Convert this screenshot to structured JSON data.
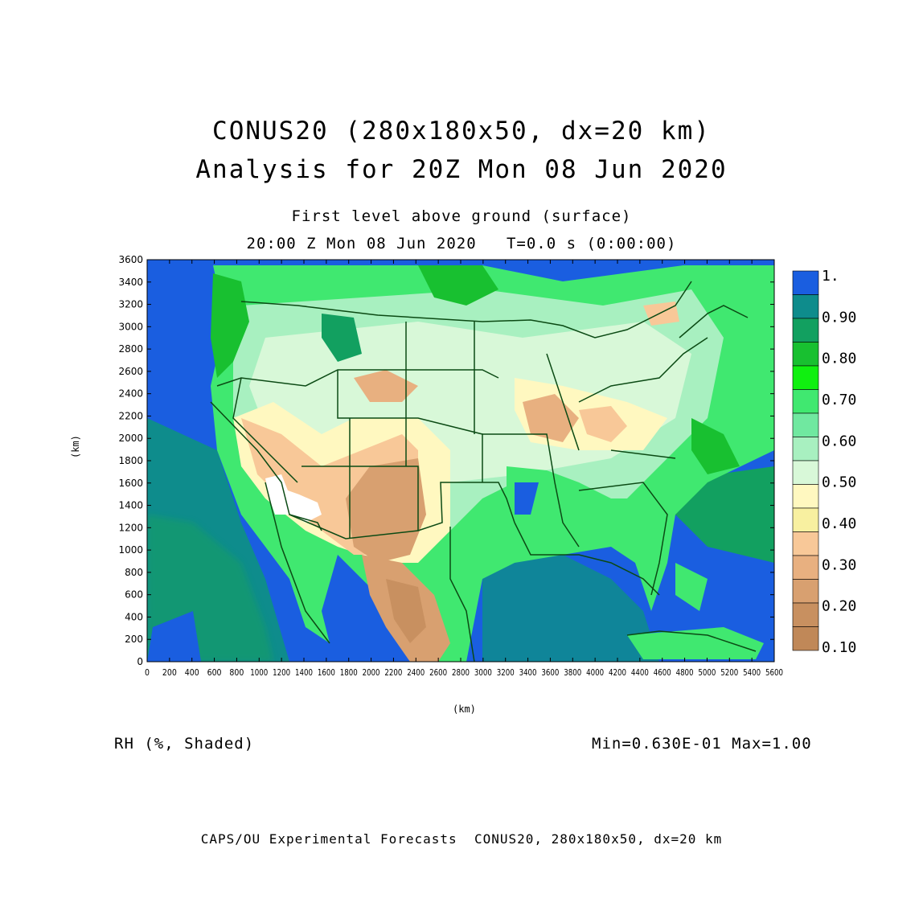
{
  "titles": {
    "line1": "CONUS20 (280x180x50, dx=20 km)",
    "line2": "Analysis for 20Z Mon 08 Jun 2020",
    "sub1": "First level above ground (surface)",
    "sub2": "20:00 Z Mon 08 Jun 2020   T=0.0 s (0:00:00)"
  },
  "axes": {
    "x_label": "(km)",
    "y_label": "(km)",
    "x_ticks": [
      "0",
      "200",
      "400",
      "600",
      "800",
      "1000",
      "1200",
      "1400",
      "1600",
      "1800",
      "2000",
      "2200",
      "2400",
      "2600",
      "2800",
      "3000",
      "3200",
      "3400",
      "3600",
      "3800",
      "4000",
      "4200",
      "4400",
      "4600",
      "4800",
      "5000",
      "5200",
      "5400",
      "5600"
    ],
    "y_ticks": [
      "0",
      "200",
      "400",
      "600",
      "800",
      "1000",
      "1200",
      "1400",
      "1600",
      "1800",
      "2000",
      "2200",
      "2400",
      "2600",
      "2800",
      "3000",
      "3200",
      "3400",
      "3600"
    ],
    "x_range": [
      0,
      5600
    ],
    "y_range": [
      0,
      3600
    ]
  },
  "colorbar": {
    "labels": [
      "1.",
      "0.90",
      "0.80",
      "0.70",
      "0.60",
      "0.50",
      "0.40",
      "0.30",
      "0.20",
      "0.10"
    ],
    "colors": [
      "#1a5ee0",
      "#0e8c8c",
      "#12a060",
      "#18c030",
      "#10f010",
      "#40e870",
      "#70e8a0",
      "#a8f0c0",
      "#d8f8d8",
      "#fff8c0",
      "#f8f0a0",
      "#f8c898",
      "#e8b080",
      "#d8a070",
      "#c89060",
      "#c08858"
    ]
  },
  "field": {
    "label": "RH (%, Shaded)",
    "minmax": "Min=0.630E-01 Max=1.00"
  },
  "footer": "CAPS/OU Experimental Forecasts  CONUS20, 280x180x50, dx=20 km"
}
